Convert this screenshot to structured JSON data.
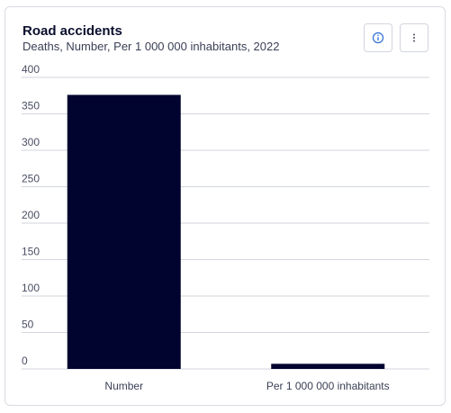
{
  "card": {
    "title": "Road accidents",
    "subtitle": "Deaths, Number, Per 1 000 000 inhabitants, 2022"
  },
  "buttons": {
    "info_icon": "info-circle-icon",
    "more_icon": "more-vertical-icon"
  },
  "colors": {
    "bar": "#00042e",
    "grid": "#d3d6de",
    "accent": "#2e6fd6"
  },
  "chart_data": {
    "type": "bar",
    "categories": [
      "Number",
      "Per 1 000 000 inhabitants"
    ],
    "values": [
      376,
      7
    ],
    "ylim": [
      0,
      400
    ],
    "yticks": [
      "0",
      "50",
      "100",
      "150",
      "200",
      "250",
      "300",
      "350",
      "400"
    ],
    "grid": true,
    "legend": "none"
  }
}
